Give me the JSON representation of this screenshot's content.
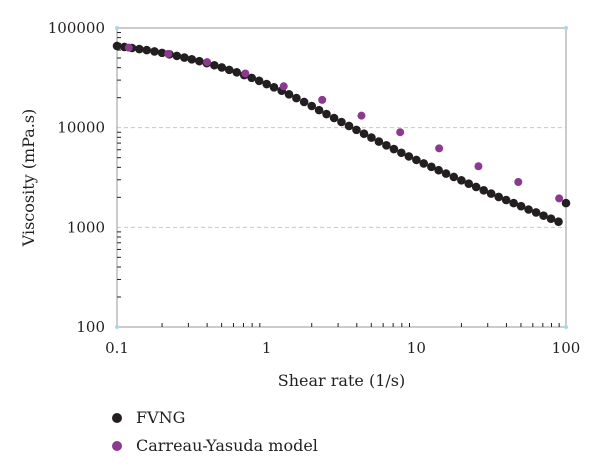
{
  "chart_data": {
    "type": "scatter",
    "xlabel": "Shear rate (1/s)",
    "ylabel": "Viscosity (mPa.s)",
    "x_scale": "log",
    "y_scale": "log",
    "xlim": [
      0.1,
      100
    ],
    "ylim": [
      100,
      100000
    ],
    "x_ticks": [
      "0.1",
      "1",
      "10",
      "100"
    ],
    "y_ticks": [
      "100",
      "1000",
      "10000",
      "100000"
    ],
    "grid": "horizontal dashed",
    "legend_position": "bottom-left",
    "series": [
      {
        "name": "FVNG",
        "color": "#231f20",
        "x": [
          0.1,
          0.112,
          0.126,
          0.141,
          0.158,
          0.178,
          0.2,
          0.224,
          0.251,
          0.282,
          0.316,
          0.355,
          0.398,
          0.447,
          0.501,
          0.562,
          0.631,
          0.708,
          0.794,
          0.891,
          1.0,
          1.12,
          1.26,
          1.41,
          1.58,
          1.78,
          2.0,
          2.24,
          2.51,
          2.82,
          3.16,
          3.55,
          3.98,
          4.47,
          5.01,
          5.62,
          6.31,
          7.08,
          7.94,
          8.91,
          10.0,
          11.2,
          12.6,
          14.1,
          15.8,
          17.8,
          20.0,
          22.4,
          25.1,
          28.2,
          31.6,
          35.5,
          39.8,
          44.7,
          50.1,
          56.2,
          63.1,
          70.8,
          79.4,
          89.1,
          100.0
        ],
        "y": [
          66000,
          64500,
          63000,
          61500,
          60000,
          58200,
          56300,
          54400,
          52500,
          50500,
          48500,
          46500,
          44400,
          42300,
          40200,
          38000,
          35900,
          33700,
          31600,
          29500,
          27400,
          25400,
          23500,
          21600,
          19800,
          18100,
          16500,
          15000,
          13700,
          12500,
          11400,
          10400,
          9500,
          8700,
          7950,
          7250,
          6650,
          6100,
          5600,
          5150,
          4750,
          4380,
          4050,
          3740,
          3460,
          3200,
          2960,
          2740,
          2540,
          2350,
          2180,
          2020,
          1880,
          1750,
          1630,
          1510,
          1410,
          1310,
          1220,
          1140,
          1750
        ]
      },
      {
        "name": "Carreau-Yasuda model",
        "color": "#8b3a8f",
        "x": [
          0.12,
          0.22,
          0.4,
          0.72,
          1.3,
          2.35,
          4.3,
          7.8,
          14.2,
          26,
          48,
          90
        ],
        "y": [
          63500,
          55000,
          45500,
          35000,
          26000,
          19000,
          13200,
          9000,
          6200,
          4100,
          2850,
          1950
        ]
      }
    ]
  }
}
